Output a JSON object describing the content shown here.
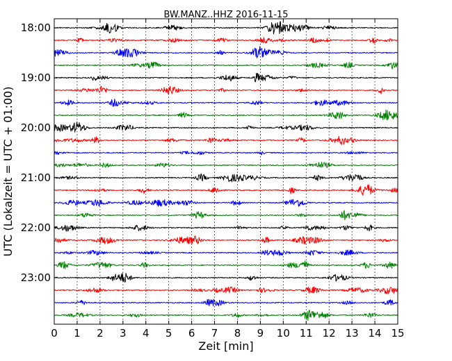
{
  "chart_data": {
    "type": "line",
    "title": "BW.MANZ..HHZ 2016-11-15",
    "xlabel": "Zeit  [min]",
    "ylabel": "UTC (Lokalzeit = UTC + 01:00)",
    "xlim": [
      0,
      15
    ],
    "x_ticks": [
      "0",
      "1",
      "2",
      "3",
      "4",
      "5",
      "6",
      "7",
      "8",
      "9",
      "10",
      "11",
      "12",
      "13",
      "14",
      "15"
    ],
    "y_ticks": [
      "18:00",
      "19:00",
      "20:00",
      "21:00",
      "22:00",
      "23:00"
    ],
    "trace_start_times": [
      "18:00",
      "18:15",
      "18:30",
      "18:45",
      "19:00",
      "19:15",
      "19:30",
      "19:45",
      "20:00",
      "20:15",
      "20:30",
      "20:45",
      "21:00",
      "21:15",
      "21:30",
      "21:45",
      "22:00",
      "22:15",
      "22:30",
      "22:45",
      "23:00",
      "23:15",
      "23:30",
      "23:45"
    ],
    "trace_minutes_per_line": 15,
    "trace_color_cycle": [
      "#000000",
      "#ff0000",
      "#0000ff",
      "#008000"
    ],
    "grid": "vertical dotted"
  }
}
